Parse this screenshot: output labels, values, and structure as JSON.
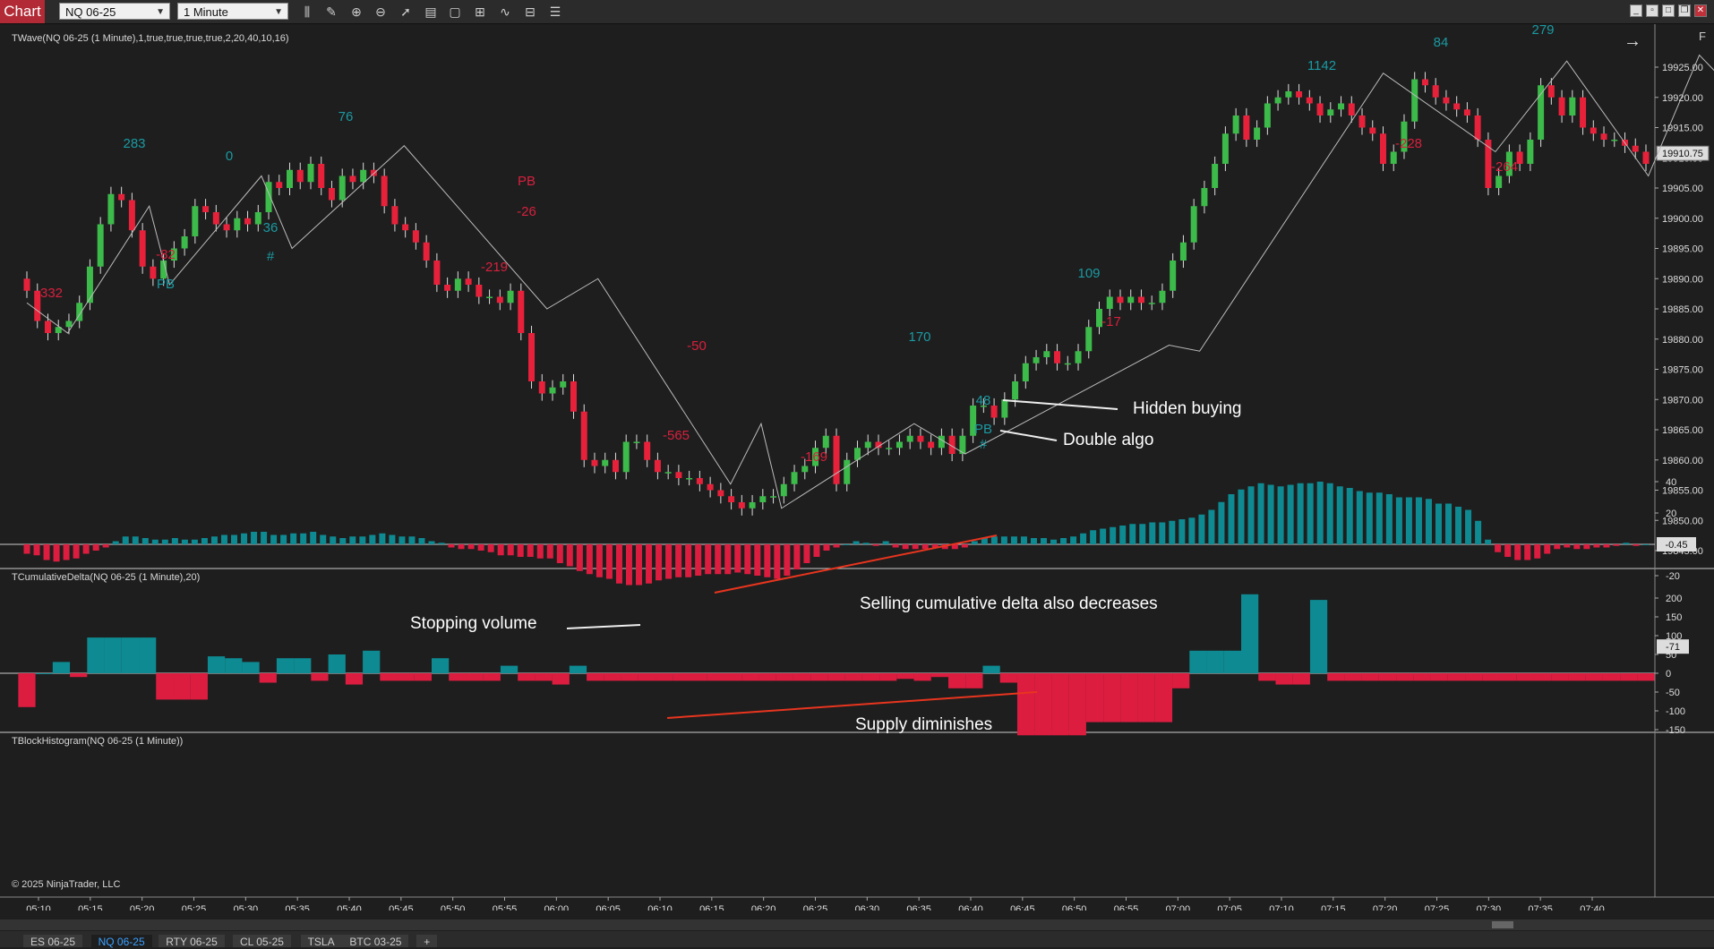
{
  "window": {
    "title": "Chart",
    "instrument": "NQ 06-25",
    "interval": "1 Minute",
    "toolbar_icons": [
      "bars-icon",
      "pencil-icon",
      "zoom-in-icon",
      "zoom-out-icon",
      "pointer-icon",
      "data-box-icon",
      "properties-icon",
      "indicators-icon",
      "strategies-icon",
      "templates-icon",
      "menu-icon"
    ],
    "window_buttons": [
      "minimize-icon",
      "restore-icon",
      "maximize-icon",
      "close-icon"
    ],
    "right_letter": "F",
    "arrow_icon": "arrow-right-icon"
  },
  "colors": {
    "bg": "#1e1e1e",
    "up": "#3cba4a",
    "down": "#e8213b",
    "teal": "#0e8a92",
    "red": "#dd1d40",
    "label_teal": "#1a9aa2",
    "label_red": "#d8203e"
  },
  "panels": {
    "price": {
      "label": "TWave(NQ 06-25 (1 Minute),1,true,true,true,true,2,20,40,10,16)",
      "ticks": [
        "19925.00",
        "19920.00",
        "19915.00",
        "19910.00",
        "19905.00",
        "19900.00",
        "19895.00",
        "19890.00",
        "19885.00",
        "19880.00",
        "19875.00",
        "19870.00",
        "19865.00",
        "19860.00",
        "19855.00",
        "19850.00",
        "19845.00"
      ],
      "last_price": "19910.75"
    },
    "delta": {
      "label": "TCumulativeDelta(NQ 06-25 (1 Minute),20)",
      "ticks": [
        "40",
        "20",
        "-20"
      ],
      "last": "-0.45"
    },
    "block": {
      "label": "TBlockHistogram(NQ 06-25 (1 Minute))",
      "ticks": [
        "200",
        "150",
        "100",
        "50",
        "0",
        "-50",
        "-100",
        "-150"
      ],
      "last": "-71"
    }
  },
  "wave_labels": [
    {
      "text": "283",
      "c": "teal"
    },
    {
      "text": "0",
      "c": "teal"
    },
    {
      "text": "76",
      "c": "teal"
    },
    {
      "text": "36",
      "c": "teal"
    },
    {
      "text": "#",
      "c": "teal"
    },
    {
      "text": "-82",
      "c": "red"
    },
    {
      "text": "PB",
      "c": "teal"
    },
    {
      "text": "-332",
      "c": "red"
    },
    {
      "text": "PB",
      "c": "red"
    },
    {
      "text": "-26",
      "c": "red"
    },
    {
      "text": "-219",
      "c": "red"
    },
    {
      "text": "-50",
      "c": "red"
    },
    {
      "text": "-565",
      "c": "red"
    },
    {
      "text": "-169",
      "c": "red"
    },
    {
      "text": "170",
      "c": "teal"
    },
    {
      "text": "48",
      "c": "teal"
    },
    {
      "text": "PB",
      "c": "teal"
    },
    {
      "text": "#",
      "c": "teal"
    },
    {
      "text": "109",
      "c": "teal"
    },
    {
      "text": "-17",
      "c": "red"
    },
    {
      "text": "1142",
      "c": "teal"
    },
    {
      "text": "84",
      "c": "teal"
    },
    {
      "text": "279",
      "c": "teal"
    },
    {
      "text": "-228",
      "c": "red"
    },
    {
      "text": "-264",
      "c": "red"
    }
  ],
  "annotations": {
    "hidden_buying": "Hidden buying",
    "double_algo": "Double algo",
    "selling_delta": "Selling cumulative delta also decreases",
    "stopping_volume": "Stopping volume",
    "supply": "Supply diminishes",
    "copyright": "© 2025 NinjaTrader, LLC"
  },
  "time_axis": [
    "05:10",
    "05:15",
    "05:20",
    "05:25",
    "05:30",
    "05:35",
    "05:40",
    "05:45",
    "05:50",
    "05:55",
    "06:00",
    "06:05",
    "06:10",
    "06:15",
    "06:20",
    "06:25",
    "06:30",
    "06:35",
    "06:40",
    "06:45",
    "06:50",
    "06:55",
    "07:00",
    "07:05",
    "07:10",
    "07:15",
    "07:20",
    "07:25",
    "07:30",
    "07:35",
    "07:40"
  ],
  "bottom_tabs": [
    "ES 06-25",
    "NQ 06-25",
    "RTY 06-25",
    "CL 05-25",
    "TSLA",
    "BTC 03-25",
    "+"
  ],
  "active_tab": "NQ 06-25",
  "chart_data": {
    "type": "candlestick",
    "price_pivots_hint": "approximate",
    "closes": [
      19888,
      19883,
      19881,
      19882,
      19883,
      19886,
      19892,
      19899,
      19904,
      19903,
      19898,
      19892,
      19890,
      19893,
      19895,
      19897,
      19902,
      19901,
      19899,
      19898,
      19900,
      19899,
      19901,
      19906,
      19905,
      19908,
      19906,
      19909,
      19905,
      19903,
      19907,
      19906,
      19908,
      19907,
      19902,
      19899,
      19898,
      19896,
      19893,
      19889,
      19888,
      19890,
      19889,
      19887,
      19887,
      19886,
      19888,
      19881,
      19873,
      19871,
      19872,
      19873,
      19868,
      19860,
      19859,
      19860,
      19858,
      19863,
      19863,
      19860,
      19858,
      19858,
      19857,
      19857,
      19856,
      19855,
      19854,
      19853,
      19852,
      19853,
      19854,
      19854,
      19856,
      19858,
      19859,
      19862,
      19864,
      19856,
      19860,
      19862,
      19863,
      19862,
      19862,
      19863,
      19864,
      19863,
      19862,
      19864,
      19861,
      19864,
      19869,
      19869,
      19867,
      19870,
      19873,
      19876,
      19877,
      19878,
      19876,
      19876,
      19878,
      19882,
      19885,
      19887,
      19886,
      19887,
      19886,
      19886,
      19888,
      19893,
      19896,
      19902,
      19905,
      19909,
      19914,
      19917,
      19913,
      19915,
      19919,
      19920,
      19921,
      19920,
      19919,
      19917,
      19918,
      19919,
      19917,
      19915,
      19914,
      19909,
      19911,
      19916,
      19923,
      19922,
      19920,
      19919,
      19918,
      19917,
      19913,
      19905,
      19907,
      19911,
      19909,
      19913,
      19922,
      19920,
      19917,
      19920,
      19915,
      19914,
      19913,
      19913,
      19912,
      19911,
      19909
    ],
    "delta": [
      -6,
      -7,
      -10,
      -11,
      -10,
      -9,
      -6,
      -4,
      -2,
      2,
      5,
      5,
      4,
      3,
      3,
      4,
      3,
      3,
      4,
      5,
      6,
      6,
      7,
      8,
      8,
      6,
      6,
      7,
      7,
      8,
      6,
      5,
      4,
      5,
      5,
      6,
      7,
      6,
      5,
      5,
      4,
      2,
      1,
      -2,
      -3,
      -3,
      -4,
      -5,
      -7,
      -7,
      -8,
      -8,
      -9,
      -9,
      -12,
      -14,
      -17,
      -19,
      -21,
      -22,
      -25,
      -26,
      -26,
      -25,
      -23,
      -22,
      -21,
      -21,
      -20,
      -19,
      -19,
      -19,
      -18,
      -19,
      -20,
      -21,
      -22,
      -20,
      -16,
      -12,
      -8,
      -4,
      -2,
      0,
      2,
      1,
      -1,
      2,
      -2,
      -3,
      -3,
      -3,
      -2,
      -3,
      -3,
      -2,
      2,
      4,
      5,
      5,
      5,
      5,
      4,
      4,
      3,
      4,
      5,
      7,
      9,
      10,
      11,
      12,
      13,
      13,
      14,
      14,
      15,
      16,
      17,
      19,
      22,
      27,
      32,
      35,
      37,
      39,
      38,
      37,
      38,
      39,
      39,
      40,
      39,
      37,
      36,
      34,
      33,
      33,
      32,
      30,
      30,
      30,
      29,
      26,
      26,
      24,
      22,
      15,
      3,
      -5,
      -8,
      -10,
      -10,
      -9,
      -6,
      -3,
      -2,
      -3,
      -3,
      -2,
      -2,
      -1,
      1,
      -1,
      0
    ],
    "block": [
      -90,
      0,
      30,
      -10,
      95,
      95,
      95,
      95,
      -70,
      -70,
      -70,
      45,
      40,
      30,
      -25,
      40,
      40,
      -20,
      50,
      -30,
      60,
      -20,
      -20,
      -20,
      40,
      -20,
      -20,
      -20,
      20,
      -20,
      -20,
      -30,
      20,
      -20,
      -20,
      -20,
      -20,
      -20,
      -20,
      -20,
      -20,
      -20,
      -20,
      -20,
      -20,
      -20,
      -20,
      -20,
      -20,
      -20,
      -20,
      -15,
      -20,
      -10,
      -40,
      -40,
      20,
      -25,
      -165,
      -165,
      -165,
      -165,
      -130,
      -130,
      -130,
      -130,
      -130,
      -40,
      60,
      60,
      60,
      210,
      -20,
      -30,
      -30,
      195,
      -20,
      -20,
      -20,
      -20,
      -20,
      -20,
      -20,
      -20,
      -20,
      -20,
      -20,
      -20,
      -20,
      -20,
      -20,
      -20,
      -20,
      -20,
      -20
    ],
    "title": "NQ 06-25 1 Minute"
  }
}
